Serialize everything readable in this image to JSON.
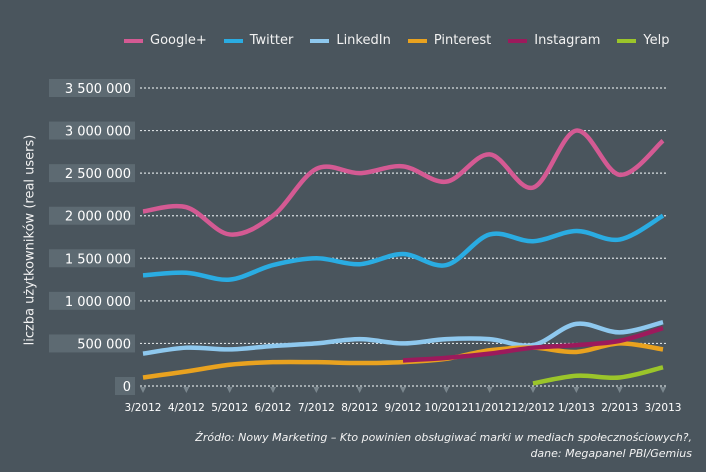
{
  "chart_data": {
    "type": "line",
    "title": "",
    "xlabel": "",
    "ylabel": "liczba użytkowników (real users)",
    "ylim": [
      0,
      3500000
    ],
    "yticks": [
      0,
      500000,
      1000000,
      1500000,
      2000000,
      2500000,
      3000000,
      3500000
    ],
    "ytick_labels": [
      "0",
      "500 000",
      "1 000 000",
      "1 500 000",
      "2 000 000",
      "2 500 000",
      "3 000 000",
      "3 500 000"
    ],
    "grid": true,
    "legend_position": "top",
    "categories": [
      "3/2012",
      "4/2012",
      "5/2012",
      "6/2012",
      "7/2012",
      "8/2012",
      "9/2012",
      "10/2012",
      "11/2012",
      "12/2012",
      "1/2013",
      "2/2013",
      "3/2013"
    ],
    "series": [
      {
        "name": "Google+",
        "color": "#d45a93",
        "values": [
          2050000,
          2100000,
          1780000,
          2000000,
          2550000,
          2500000,
          2580000,
          2400000,
          2720000,
          2330000,
          3000000,
          2480000,
          2880000
        ]
      },
      {
        "name": "Twitter",
        "color": "#2aace2",
        "values": [
          1300000,
          1330000,
          1250000,
          1420000,
          1500000,
          1430000,
          1550000,
          1420000,
          1780000,
          1700000,
          1820000,
          1720000,
          2000000
        ]
      },
      {
        "name": "LinkedIn",
        "color": "#8ec8ee",
        "values": [
          380000,
          450000,
          430000,
          470000,
          500000,
          550000,
          500000,
          550000,
          550000,
          480000,
          730000,
          630000,
          750000
        ]
      },
      {
        "name": "Pinterest",
        "color": "#e9a21f",
        "values": [
          100000,
          170000,
          250000,
          280000,
          280000,
          270000,
          280000,
          320000,
          420000,
          450000,
          400000,
          500000,
          430000
        ]
      },
      {
        "name": "Instagram",
        "color": "#9c1a5c",
        "values": [
          null,
          null,
          null,
          null,
          null,
          null,
          300000,
          330000,
          380000,
          450000,
          480000,
          530000,
          680000
        ]
      },
      {
        "name": "Yelp",
        "color": "#9bc52a",
        "values": [
          null,
          null,
          null,
          null,
          null,
          null,
          null,
          null,
          null,
          30000,
          120000,
          100000,
          220000
        ]
      }
    ]
  },
  "source": {
    "line1": "Źródło: Nowy Marketing – Kto powinien obsługiwać marki w mediach społecznościowych?,",
    "line2": "dane: Megapanel PBI/Gemius"
  }
}
